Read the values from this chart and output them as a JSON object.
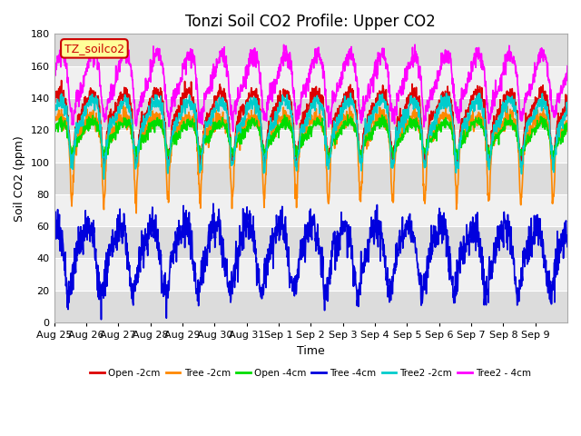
{
  "title": "Tonzi Soil CO2 Profile: Upper CO2",
  "xlabel": "Time",
  "ylabel": "Soil CO2 (ppm)",
  "ylim": [
    0,
    180
  ],
  "yticks": [
    0,
    20,
    40,
    60,
    80,
    100,
    120,
    140,
    160,
    180
  ],
  "annotation_box": "TZ_soilco2",
  "annotation_color": "#cc0000",
  "annotation_bg": "#ffff99",
  "xticklabels": [
    "Aug 25",
    "Aug 26",
    "Aug 27",
    "Aug 28",
    "Aug 29",
    "Aug 30",
    "Aug 31",
    "Sep 1",
    "Sep 2",
    "Sep 3",
    "Sep 4",
    "Sep 5",
    "Sep 6",
    "Sep 7",
    "Sep 8",
    "Sep 9"
  ],
  "series": [
    {
      "label": "Open -2cm",
      "color": "#dd0000",
      "lw": 1.2
    },
    {
      "label": "Tree -2cm",
      "color": "#ff8800",
      "lw": 1.2
    },
    {
      "label": "Open -4cm",
      "color": "#00dd00",
      "lw": 1.2
    },
    {
      "label": "Tree -4cm",
      "color": "#0000dd",
      "lw": 1.2
    },
    {
      "label": "Tree2 -2cm",
      "color": "#00cccc",
      "lw": 1.2
    },
    {
      "label": "Tree2 - 4cm",
      "color": "#ff00ff",
      "lw": 1.2
    }
  ],
  "background_color": "#ffffff",
  "plot_bg_light": "#f0f0f0",
  "plot_bg_dark": "#dcdcdc",
  "grid_color": "#ffffff",
  "title_fontsize": 12,
  "label_fontsize": 9,
  "tick_fontsize": 8
}
